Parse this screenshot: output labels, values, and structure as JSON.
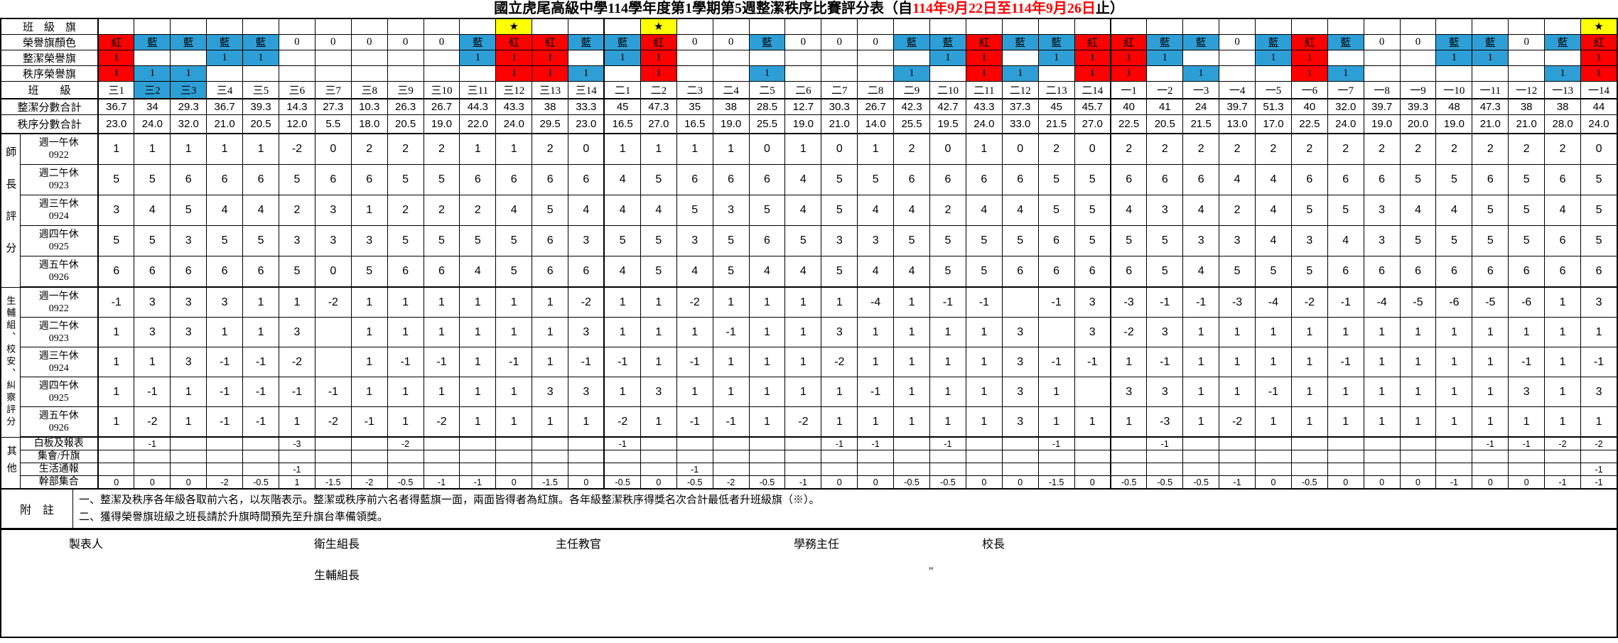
{
  "star_char": "★",
  "app": {
    "title_pre": "國立虎尾高級中學114學年度第1學期第5週整潔秩序比賽評分表（自",
    "title_date": "114年9月22日至114年9月26日",
    "title_post": "止）"
  },
  "colors": {
    "red": "#fe0000",
    "blue": "#2e9fd6",
    "yellow": "#ffff00",
    "date_red": "#ff0000"
  },
  "row_labels": {
    "flag": "班　級　旗",
    "color": "榮譽旗顏色",
    "clean_flag": "整潔榮譽旗",
    "order_flag": "秩序榮譽旗",
    "class": "班　　級",
    "clean_total": "整潔分數合計",
    "order_total": "秩序分數合計"
  },
  "class_names": [
    "三1",
    "三2",
    "三3",
    "三4",
    "三5",
    "三6",
    "三7",
    "三8",
    "三9",
    "三10",
    "三11",
    "三12",
    "三13",
    "三14",
    "二1",
    "二2",
    "二3",
    "二4",
    "二5",
    "二6",
    "二7",
    "二8",
    "二9",
    "二10",
    "二11",
    "二12",
    "二13",
    "二14",
    "一1",
    "一2",
    "一3",
    "一4",
    "一5",
    "一6",
    "一7",
    "一8",
    "一9",
    "一10",
    "一11",
    "一12",
    "一13",
    "一14"
  ],
  "star_cols": [
    11,
    15,
    41
  ],
  "class_bg_cols": [
    1,
    2
  ],
  "color_row": [
    "紅",
    "藍",
    "藍",
    "藍",
    "藍",
    "0",
    "0",
    "0",
    "0",
    "0",
    "藍",
    "紅",
    "紅",
    "藍",
    "藍",
    "紅",
    "0",
    "0",
    "藍",
    "0",
    "0",
    "0",
    "藍",
    "藍",
    "紅",
    "藍",
    "藍",
    "紅",
    "紅",
    "藍",
    "藍",
    "0",
    "藍",
    "紅",
    "藍",
    "0",
    "0",
    "藍",
    "藍",
    "0",
    "藍",
    "紅"
  ],
  "clean_flag_row": [
    "1",
    "",
    "",
    "1",
    "1",
    "",
    "",
    "",
    "",
    "",
    "1",
    "1",
    "1",
    "",
    "1",
    "1",
    "",
    "",
    "",
    "",
    "",
    "",
    "",
    "1",
    "1",
    "",
    "1",
    "1",
    "1",
    "1",
    "",
    "",
    "1",
    "1",
    "",
    "",
    "",
    "1",
    "1",
    "",
    "",
    "1"
  ],
  "order_flag_row": [
    "1",
    "1",
    "1",
    "",
    "",
    "",
    "",
    "",
    "",
    "",
    "",
    "1",
    "1",
    "1",
    "",
    "1",
    "",
    "",
    "1",
    "",
    "",
    "",
    "1",
    "",
    "1",
    "1",
    "",
    "1",
    "1",
    "",
    "1",
    "",
    "",
    "1",
    "1",
    "",
    "",
    "",
    "",
    "",
    "1",
    "1"
  ],
  "clean_total_row": [
    "36.7",
    "34",
    "29.3",
    "36.7",
    "39.3",
    "14.3",
    "27.3",
    "10.3",
    "26.3",
    "26.7",
    "44.3",
    "43.3",
    "38",
    "33.3",
    "45",
    "47.3",
    "35",
    "38",
    "28.5",
    "12.7",
    "30.3",
    "26.7",
    "42.3",
    "42.7",
    "43.3",
    "37.3",
    "45",
    "45.7",
    "40",
    "41",
    "24",
    "39.7",
    "51.3",
    "40",
    "32.0",
    "39.7",
    "39.3",
    "48",
    "47.3",
    "38",
    "38",
    "44"
  ],
  "order_total_row": [
    "23.0",
    "24.0",
    "32.0",
    "21.0",
    "20.5",
    "12.0",
    "5.5",
    "18.0",
    "20.5",
    "19.0",
    "22.0",
    "24.0",
    "29.5",
    "23.0",
    "16.5",
    "27.0",
    "16.5",
    "19.0",
    "25.5",
    "19.0",
    "21.0",
    "14.0",
    "25.5",
    "19.5",
    "24.0",
    "33.0",
    "21.5",
    "27.0",
    "22.5",
    "20.5",
    "21.5",
    "13.0",
    "17.0",
    "22.5",
    "24.0",
    "19.0",
    "20.0",
    "19.0",
    "21.0",
    "21.0",
    "28.0",
    "24.0"
  ],
  "sections": [
    {
      "group": "師長評分",
      "rows": [
        {
          "label": "週一午休",
          "sub": "0922",
          "values": [
            "1",
            "1",
            "1",
            "1",
            "1",
            "-2",
            "0",
            "2",
            "2",
            "2",
            "1",
            "1",
            "2",
            "0",
            "1",
            "1",
            "1",
            "1",
            "0",
            "1",
            "0",
            "1",
            "2",
            "0",
            "1",
            "0",
            "2",
            "0",
            "2",
            "2",
            "2",
            "2",
            "2",
            "2",
            "2",
            "2",
            "2",
            "2",
            "2",
            "2",
            "2",
            "0"
          ]
        },
        {
          "label": "週二午休",
          "sub": "0923",
          "values": [
            "5",
            "5",
            "6",
            "6",
            "6",
            "5",
            "6",
            "6",
            "5",
            "5",
            "6",
            "6",
            "6",
            "6",
            "4",
            "5",
            "6",
            "6",
            "6",
            "4",
            "5",
            "5",
            "6",
            "6",
            "6",
            "6",
            "5",
            "5",
            "6",
            "6",
            "6",
            "4",
            "4",
            "6",
            "6",
            "6",
            "5",
            "5",
            "6",
            "5",
            "6",
            "5"
          ]
        },
        {
          "label": "週三午休",
          "sub": "0924",
          "values": [
            "3",
            "4",
            "5",
            "4",
            "4",
            "2",
            "3",
            "1",
            "2",
            "2",
            "2",
            "4",
            "5",
            "4",
            "4",
            "4",
            "5",
            "3",
            "5",
            "4",
            "5",
            "4",
            "4",
            "2",
            "4",
            "4",
            "5",
            "5",
            "4",
            "3",
            "4",
            "2",
            "4",
            "5",
            "5",
            "3",
            "4",
            "4",
            "5",
            "5",
            "4",
            "5"
          ]
        },
        {
          "label": "週四午休",
          "sub": "0925",
          "values": [
            "5",
            "5",
            "3",
            "5",
            "5",
            "3",
            "3",
            "3",
            "5",
            "5",
            "5",
            "5",
            "6",
            "3",
            "5",
            "5",
            "3",
            "5",
            "6",
            "5",
            "3",
            "3",
            "5",
            "5",
            "5",
            "5",
            "6",
            "5",
            "5",
            "5",
            "3",
            "3",
            "4",
            "3",
            "4",
            "3",
            "5",
            "5",
            "5",
            "5",
            "6",
            "5"
          ]
        },
        {
          "label": "週五午休",
          "sub": "0926",
          "values": [
            "6",
            "6",
            "6",
            "6",
            "6",
            "5",
            "0",
            "5",
            "6",
            "6",
            "4",
            "5",
            "6",
            "6",
            "4",
            "5",
            "4",
            "5",
            "4",
            "4",
            "5",
            "4",
            "4",
            "5",
            "5",
            "6",
            "6",
            "6",
            "6",
            "5",
            "4",
            "5",
            "5",
            "5",
            "6",
            "6",
            "6",
            "6",
            "6",
            "6",
            "6",
            "6"
          ]
        }
      ]
    },
    {
      "group": "生輔組、校安、糾察評分",
      "rows": [
        {
          "label": "週一午休",
          "sub": "0922",
          "values": [
            "-1",
            "3",
            "3",
            "3",
            "1",
            "1",
            "-2",
            "1",
            "1",
            "1",
            "1",
            "1",
            "1",
            "-2",
            "1",
            "1",
            "-2",
            "1",
            "1",
            "1",
            "1",
            "-4",
            "1",
            "-1",
            "-1",
            "",
            "-1",
            "3",
            "-3",
            "-1",
            "-1",
            "-3",
            "-4",
            "-2",
            "-1",
            "-4",
            "-5",
            "-6",
            "-5",
            "-6",
            "1",
            "3"
          ]
        },
        {
          "label": "週二午休",
          "sub": "0923",
          "values": [
            "1",
            "3",
            "3",
            "1",
            "1",
            "3",
            "",
            "1",
            "1",
            "1",
            "1",
            "1",
            "1",
            "3",
            "1",
            "1",
            "1",
            "-1",
            "1",
            "1",
            "3",
            "1",
            "1",
            "1",
            "1",
            "3",
            "",
            "3",
            "-2",
            "3",
            "1",
            "1",
            "1",
            "1",
            "1",
            "1",
            "1",
            "1",
            "1",
            "1",
            "1",
            "1"
          ]
        },
        {
          "label": "週三午休",
          "sub": "0924",
          "values": [
            "1",
            "1",
            "3",
            "-1",
            "-1",
            "-2",
            "",
            "1",
            "-1",
            "-1",
            "1",
            "-1",
            "1",
            "-1",
            "-1",
            "1",
            "-1",
            "1",
            "1",
            "1",
            "-2",
            "1",
            "1",
            "1",
            "1",
            "3",
            "-1",
            "-1",
            "1",
            "-1",
            "1",
            "1",
            "1",
            "1",
            "-1",
            "1",
            "1",
            "1",
            "1",
            "-1",
            "1",
            "-1"
          ]
        },
        {
          "label": "週四午休",
          "sub": "0925",
          "values": [
            "1",
            "-1",
            "1",
            "-1",
            "-1",
            "-1",
            "-1",
            "1",
            "1",
            "1",
            "1",
            "1",
            "3",
            "3",
            "1",
            "3",
            "1",
            "1",
            "1",
            "1",
            "1",
            "-1",
            "1",
            "1",
            "1",
            "3",
            "1",
            "",
            "3",
            "3",
            "1",
            "1",
            "-1",
            "1",
            "1",
            "1",
            "1",
            "1",
            "1",
            "3",
            "1",
            "3"
          ]
        },
        {
          "label": "週五午休",
          "sub": "0926",
          "values": [
            "1",
            "-2",
            "1",
            "-1",
            "-1",
            "1",
            "-2",
            "-1",
            "1",
            "-2",
            "1",
            "1",
            "1",
            "1",
            "-2",
            "1",
            "-1",
            "-1",
            "1",
            "-2",
            "1",
            "1",
            "1",
            "1",
            "1",
            "3",
            "1",
            "1",
            "1",
            "-3",
            "1",
            "-2",
            "1",
            "1",
            "1",
            "1",
            "1",
            "1",
            "1",
            "1",
            "1",
            "1"
          ]
        }
      ]
    },
    {
      "group": "其他",
      "rows": [
        {
          "label": "白板及報表",
          "sub": "",
          "values": [
            "",
            "-1",
            "",
            "",
            "",
            "-3",
            "",
            "",
            "-2",
            "",
            "",
            "",
            "",
            "",
            "-1",
            "",
            "",
            "",
            "",
            "",
            "-1",
            "-1",
            "",
            "-1",
            "",
            "",
            "-1",
            "",
            "",
            "-1",
            "",
            "",
            "",
            "",
            "",
            "",
            "",
            "",
            "-1",
            "-1",
            "-2",
            "-2"
          ]
        },
        {
          "label": "集會/升旗",
          "sub": "",
          "values": [
            "",
            "",
            "",
            "",
            "",
            "",
            "",
            "",
            "",
            "",
            "",
            "",
            "",
            "",
            "",
            "",
            "",
            "",
            "",
            "",
            "",
            "",
            "",
            "",
            "",
            "",
            "",
            "",
            "",
            "",
            "",
            "",
            "",
            "",
            "",
            "",
            "",
            "",
            "",
            "",
            "",
            ""
          ]
        },
        {
          "label": "生活通報",
          "sub": "",
          "values": [
            "",
            "",
            "",
            "",
            "",
            "-1",
            "",
            "",
            "",
            "",
            "",
            "",
            "",
            "",
            "",
            "",
            "-1",
            "",
            "",
            "",
            "",
            "",
            "",
            "",
            "",
            "",
            "",
            "",
            "",
            "",
            "",
            "",
            "",
            "",
            "",
            "",
            "",
            "",
            "",
            "",
            "",
            "-1"
          ]
        },
        {
          "label": "幹部集合",
          "sub": "",
          "values": [
            "0",
            "0",
            "0",
            "-2",
            "-0.5",
            "1",
            "-1.5",
            "-2",
            "-0.5",
            "-1",
            "-1",
            "0",
            "-1.5",
            "0",
            "-0.5",
            "0",
            "-0.5",
            "-2",
            "-0.5",
            "-1",
            "0",
            "0",
            "-0.5",
            "-0.5",
            "0",
            "0",
            "-1.5",
            "0",
            "-0.5",
            "-0.5",
            "-0.5",
            "-1",
            "0",
            "-0.5",
            "0",
            "0",
            "0",
            "-1",
            "0",
            "0",
            "-1",
            "-1"
          ]
        }
      ]
    }
  ],
  "notes": {
    "label": "附　註",
    "line1": "一、整潔及秩序各年級各取前六名，以灰階表示。整潔或秩序前六名者得藍旗一面，兩面皆得者為紅旗。各年級整潔秩序得獎名次合計最低者升班級旗（※）。",
    "line2": "二、獲得榮譽旗班級之班長請於升旗時間預先至升旗台準備領獎。"
  },
  "signatures": {
    "maker": "製表人",
    "hygiene": "衛生組長",
    "officer": "主任教官",
    "dean": "學務主任",
    "principal": "校長",
    "counsel": "生輔組長",
    "quote": "\""
  }
}
